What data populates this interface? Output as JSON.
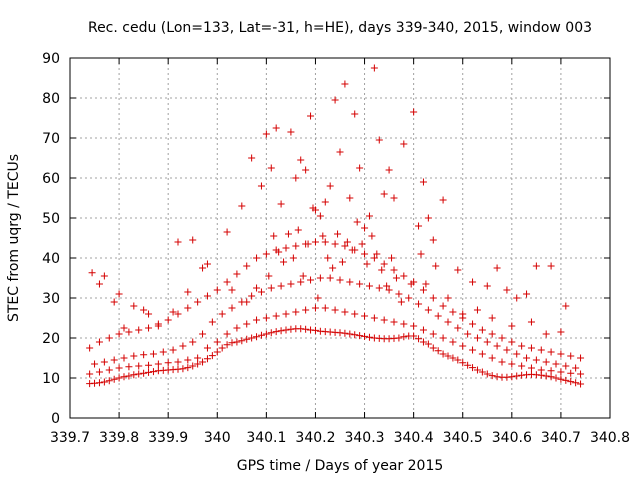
{
  "chart_data": {
    "type": "scatter",
    "title": "Rec. cedu (Lon=133, Lat=-31, h=HE), days 339-340, 2015, window 003",
    "xlabel": "GPS time / Days of year 2015",
    "ylabel": "STEC from uqrg / TECUs",
    "xlim": [
      339.7,
      340.8
    ],
    "ylim": [
      0,
      90
    ],
    "xticks": [
      "339.7",
      "339.8",
      "339.9",
      "340",
      "340.1",
      "340.2",
      "340.3",
      "340.4",
      "340.5",
      "340.6",
      "340.7",
      "340.8"
    ],
    "yticks": [
      "0",
      "10",
      "20",
      "30",
      "40",
      "50",
      "60",
      "70",
      "80",
      "90"
    ],
    "grid": true,
    "marker": "+",
    "color": "#d40000",
    "series": [
      {
        "x": [
          339.74,
          339.75,
          339.76,
          339.77,
          339.78,
          339.79,
          339.8,
          339.81,
          339.82,
          339.83,
          339.84,
          339.85,
          339.86,
          339.87,
          339.88,
          339.89,
          339.9,
          339.91,
          339.92,
          339.93,
          339.94,
          339.95,
          339.96,
          339.97,
          339.98,
          339.99,
          340.0,
          340.01,
          340.02,
          340.03,
          340.04,
          340.05,
          340.06,
          340.07,
          340.08,
          340.09,
          340.1,
          340.11,
          340.12,
          340.13,
          340.14,
          340.15,
          340.16,
          340.17,
          340.18,
          340.19,
          340.2,
          340.21,
          340.22,
          340.23,
          340.24,
          340.25,
          340.26,
          340.27,
          340.28,
          340.29,
          340.3,
          340.31,
          340.32,
          340.33,
          340.34,
          340.35,
          340.36,
          340.37,
          340.38,
          340.39,
          340.4,
          340.41,
          340.42,
          340.43,
          340.44,
          340.45,
          340.46,
          340.47,
          340.48,
          340.49,
          340.5,
          340.51,
          340.52,
          340.53,
          340.54,
          340.55,
          340.56,
          340.57,
          340.58,
          340.59,
          340.6,
          340.61,
          340.62,
          340.63,
          340.64,
          340.65,
          340.66,
          340.67,
          340.68,
          340.69,
          340.7,
          340.71,
          340.72,
          340.73,
          340.74,
          339.74,
          339.76,
          339.78,
          339.8,
          339.82,
          339.84,
          339.86,
          339.88,
          339.9,
          339.92,
          339.94,
          339.96,
          339.98,
          340.0,
          340.02,
          340.04,
          340.06,
          340.08,
          340.1,
          340.12,
          340.14,
          340.16,
          340.18,
          340.2,
          340.22,
          340.24,
          340.26,
          340.28,
          340.3,
          340.32,
          340.34,
          340.36,
          340.38,
          340.4,
          340.42,
          340.44,
          340.46,
          340.48,
          340.5,
          340.52,
          340.54,
          340.56,
          340.58,
          340.6,
          340.62,
          340.64,
          340.66,
          340.68,
          340.7,
          340.72,
          340.74,
          339.75,
          339.77,
          339.79,
          339.81,
          339.83,
          339.85,
          339.87,
          339.89,
          339.91,
          339.93,
          339.95,
          339.97,
          339.99,
          340.01,
          340.03,
          340.05,
          340.07,
          340.09,
          340.11,
          340.13,
          340.15,
          340.17,
          340.19,
          340.21,
          340.23,
          340.25,
          340.27,
          340.29,
          340.31,
          340.33,
          340.35,
          340.37,
          340.39,
          340.41,
          340.43,
          340.45,
          340.47,
          340.49,
          340.51,
          340.53,
          340.55,
          340.57,
          340.59,
          340.61,
          340.63,
          340.65,
          340.67,
          340.69,
          340.71,
          340.73,
          339.74,
          339.76,
          339.78,
          339.8,
          339.82,
          339.84,
          339.86,
          339.88,
          339.9,
          339.92,
          339.94,
          339.96,
          339.98,
          340.0,
          340.02,
          340.04,
          340.06,
          340.08,
          340.1,
          340.12,
          340.14,
          340.16,
          340.18,
          340.2,
          340.22,
          340.24,
          340.26,
          340.28,
          340.3,
          340.32,
          340.34,
          340.36,
          340.38,
          340.4,
          340.42,
          340.44,
          340.46,
          340.48,
          340.5,
          340.52,
          340.54,
          340.56,
          340.58,
          340.6,
          340.62,
          340.64,
          340.66,
          340.68,
          340.7,
          340.72,
          340.74,
          339.745,
          339.77,
          339.8,
          339.83,
          339.86,
          339.92,
          339.95,
          339.98,
          340.02,
          340.05,
          340.07,
          340.09,
          340.1,
          340.11,
          340.12,
          340.13,
          340.15,
          340.16,
          340.17,
          340.18,
          340.19,
          340.2,
          340.21,
          340.22,
          340.23,
          340.24,
          340.25,
          340.26,
          340.27,
          340.28,
          340.29,
          340.3,
          340.31,
          340.32,
          340.33,
          340.34,
          340.35,
          340.36,
          340.38,
          340.4,
          340.41,
          340.42,
          340.43,
          340.44,
          340.46,
          340.49,
          340.52,
          340.55,
          340.57,
          340.59,
          340.61,
          340.63,
          340.65,
          340.68,
          340.71,
          339.76,
          339.79,
          339.81,
          339.85,
          339.88,
          339.91,
          339.94,
          339.97,
          340.03,
          340.06,
          340.08,
          340.105,
          340.115,
          340.125,
          340.135,
          340.145,
          340.155,
          340.165,
          340.175,
          340.185,
          340.195,
          340.205,
          340.215,
          340.225,
          340.235,
          340.245,
          340.255,
          340.265,
          340.275,
          340.285,
          340.295,
          340.305,
          340.315,
          340.325,
          340.335,
          340.345,
          340.355,
          340.365,
          340.375,
          340.395,
          340.415,
          340.425,
          340.445,
          340.47,
          340.5,
          340.53,
          340.56,
          340.6,
          340.64,
          340.67,
          340.7
        ],
        "y": [
          8.6,
          8.7,
          8.8,
          9.0,
          9.3,
          9.7,
          10.0,
          10.3,
          10.5,
          10.8,
          11.0,
          11.2,
          11.4,
          11.6,
          11.8,
          11.9,
          12.0,
          12.1,
          12.2,
          12.3,
          12.6,
          13.0,
          13.5,
          14.0,
          14.8,
          15.6,
          16.5,
          17.5,
          18.3,
          18.8,
          19.0,
          19.3,
          19.7,
          20.0,
          20.3,
          20.7,
          21.0,
          21.3,
          21.6,
          21.8,
          22.0,
          22.2,
          22.3,
          22.3,
          22.2,
          22.0,
          21.9,
          21.7,
          21.6,
          21.5,
          21.4,
          21.3,
          21.2,
          21.0,
          20.8,
          20.6,
          20.4,
          20.2,
          20.0,
          19.9,
          19.8,
          19.8,
          19.9,
          20.0,
          20.3,
          20.5,
          20.5,
          19.8,
          19.0,
          18.5,
          17.5,
          16.8,
          16.0,
          15.5,
          15.0,
          14.5,
          13.8,
          13.2,
          12.6,
          12.0,
          11.5,
          11.0,
          10.6,
          10.3,
          10.2,
          10.2,
          10.3,
          10.5,
          10.7,
          10.8,
          10.9,
          10.8,
          10.7,
          10.5,
          10.3,
          10.0,
          9.7,
          9.4,
          9.1,
          8.8,
          8.5,
          11.0,
          11.5,
          12.0,
          12.5,
          12.8,
          13.0,
          13.2,
          13.5,
          13.8,
          14.0,
          14.5,
          15.0,
          17.5,
          19.0,
          21.0,
          22.5,
          23.5,
          24.5,
          25.0,
          25.5,
          26.0,
          26.5,
          27.0,
          27.5,
          27.5,
          27.0,
          26.5,
          26.0,
          25.5,
          25.0,
          24.5,
          24.0,
          23.5,
          23.0,
          22.0,
          21.0,
          20.0,
          19.0,
          18.0,
          17.0,
          16.0,
          15.0,
          14.0,
          13.5,
          13.0,
          12.5,
          12.0,
          11.8,
          11.5,
          11.2,
          11.0,
          13.5,
          14.0,
          14.5,
          15.0,
          15.5,
          15.8,
          16.0,
          16.5,
          17.0,
          18.0,
          19.0,
          21.0,
          24.0,
          26.0,
          27.5,
          29.0,
          30.5,
          31.5,
          32.5,
          33.0,
          33.5,
          34.0,
          34.5,
          35.0,
          35.0,
          34.5,
          34.0,
          33.5,
          33.0,
          32.5,
          32.0,
          31.0,
          30.0,
          28.5,
          27.0,
          25.5,
          24.0,
          22.5,
          21.0,
          20.0,
          19.0,
          18.0,
          17.0,
          16.0,
          15.0,
          14.5,
          14.0,
          13.5,
          13.0,
          12.5,
          17.5,
          19.0,
          20.0,
          21.0,
          21.5,
          22.0,
          22.5,
          23.5,
          24.5,
          26.0,
          27.5,
          29.0,
          30.5,
          32.0,
          34.0,
          36.0,
          38.0,
          40.0,
          41.0,
          42.0,
          42.5,
          43.0,
          43.5,
          44.0,
          44.0,
          43.5,
          43.0,
          42.0,
          41.0,
          40.0,
          38.5,
          37.0,
          35.5,
          34.0,
          32.0,
          30.0,
          28.0,
          26.5,
          25.0,
          23.5,
          22.0,
          21.0,
          20.0,
          19.0,
          18.0,
          17.5,
          17.0,
          16.5,
          16.0,
          15.5,
          15.0,
          36.3,
          35.5,
          31.0,
          28.0,
          26.0,
          44.0,
          44.5,
          38.5,
          46.5,
          53.0,
          65.0,
          58.0,
          71.0,
          62.5,
          72.5,
          53.5,
          71.5,
          60.0,
          64.5,
          62.0,
          75.5,
          52.0,
          50.5,
          54.0,
          58.0,
          79.5,
          66.5,
          83.5,
          55.0,
          76.0,
          62.5,
          47.5,
          50.5,
          87.5,
          69.5,
          56.0,
          62.0,
          55.0,
          68.5,
          76.5,
          48.0,
          59.0,
          50.0,
          44.5,
          54.5,
          37.0,
          34.0,
          33.0,
          37.5,
          32.0,
          30.0,
          31.0,
          38.0,
          38.0,
          28.0,
          33.5,
          29.0,
          22.5,
          27.0,
          23.0,
          26.5,
          31.5,
          37.5,
          32.0,
          29.0,
          32.5,
          35.5,
          45.5,
          41.5,
          39.0,
          46.0,
          40.0,
          47.0,
          35.5,
          43.5,
          52.5,
          30.0,
          45.5,
          40.0,
          37.5,
          46.0,
          39.0,
          44.0,
          42.0,
          49.0,
          43.5,
          38.5,
          45.5,
          41.0,
          37.0,
          33.0,
          40.0,
          35.0,
          29.0,
          33.5,
          41.0,
          33.5,
          38.0,
          30.0,
          26.0,
          27.0,
          25.0,
          23.0,
          24.0,
          21.0,
          21.5
        ]
      }
    ]
  }
}
